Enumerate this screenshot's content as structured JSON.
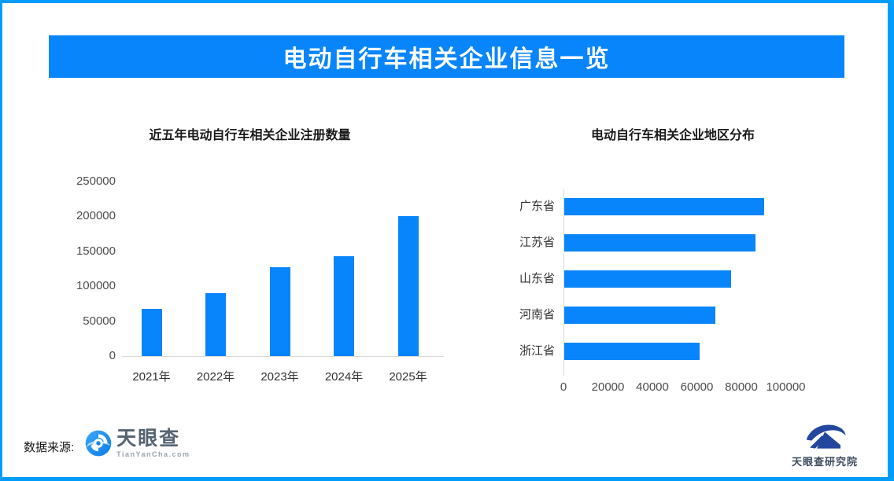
{
  "banner": {
    "title": "电动自行车相关企业信息一览"
  },
  "footer": {
    "source_label": "数据来源:",
    "tianyancha": {
      "name": "天眼查",
      "domain": "TianYanCha.com"
    },
    "research": {
      "name": "天眼查研究院"
    }
  },
  "colors": {
    "accent_blue": "#0885fb",
    "border_blue": "#009cfb",
    "axis_gray": "#d9d9d9"
  },
  "chart_data": [
    {
      "type": "bar",
      "orientation": "vertical",
      "title": "近五年电动自行车相关企业注册数量",
      "categories": [
        "2021年",
        "2022年",
        "2023年",
        "2024年",
        "2025年"
      ],
      "values": [
        68000,
        90000,
        127000,
        143000,
        200000
      ],
      "xlabel": "",
      "ylabel": "",
      "ylim": [
        0,
        250000
      ],
      "yticks": [
        0,
        50000,
        100000,
        150000,
        200000,
        250000
      ],
      "grid": false,
      "legend": "none",
      "bar_color": "#0885fb"
    },
    {
      "type": "bar",
      "orientation": "horizontal",
      "title": "电动自行车相关企业地区分布",
      "categories": [
        "广东省",
        "江苏省",
        "山东省",
        "河南省",
        "浙江省"
      ],
      "values": [
        90000,
        86000,
        75000,
        68000,
        61000
      ],
      "xlabel": "",
      "ylabel": "",
      "xlim": [
        0,
        100000
      ],
      "xticks": [
        0,
        20000,
        40000,
        60000,
        80000,
        100000
      ],
      "grid": false,
      "legend": "none",
      "bar_color": "#0885fb"
    }
  ]
}
